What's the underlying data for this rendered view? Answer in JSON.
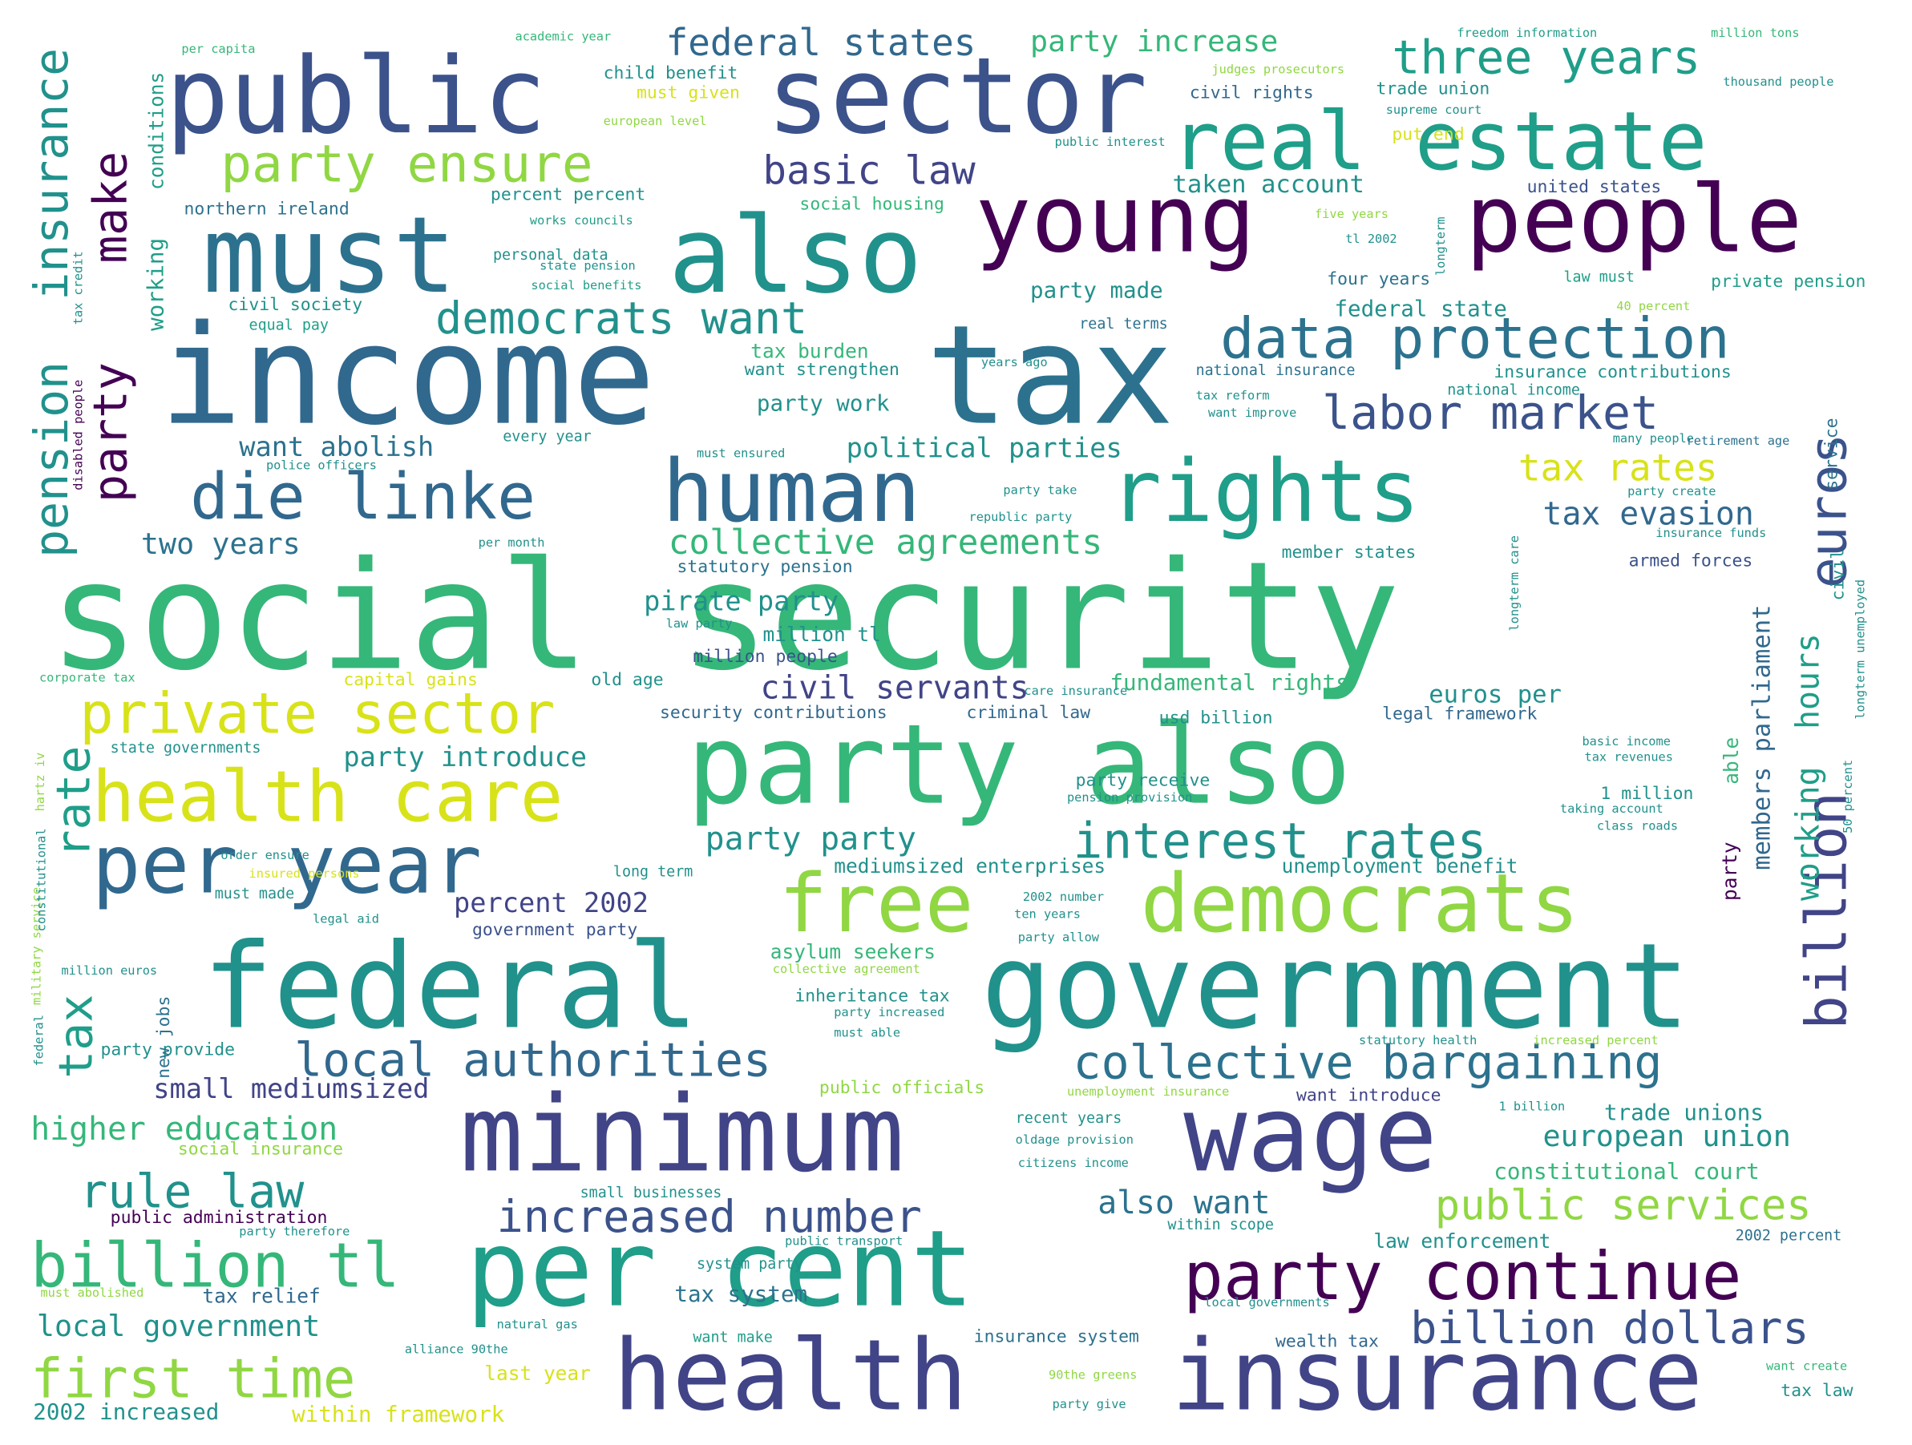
{
  "palette": {
    "dark_purple": "#440154",
    "indigo": "#3b528b",
    "navy": "#414487",
    "blue": "#31688e",
    "teal_blue": "#2c728e",
    "teal": "#21918c",
    "sea_green": "#1f9e89",
    "green": "#35b779",
    "lime": "#90d743",
    "yellow": "#d8e219"
  },
  "words": [
    {
      "text": "social security"
    },
    {
      "text": "income"
    },
    {
      "text": "tax"
    },
    {
      "text": "public"
    },
    {
      "text": "sector"
    },
    {
      "text": "federal"
    },
    {
      "text": "government"
    },
    {
      "text": "must"
    },
    {
      "text": "also"
    },
    {
      "text": "young"
    },
    {
      "text": "people"
    },
    {
      "text": "party also"
    },
    {
      "text": "minimum"
    },
    {
      "text": "wage"
    },
    {
      "text": "per cent"
    },
    {
      "text": "health"
    },
    {
      "text": "insurance"
    },
    {
      "text": "real estate"
    },
    {
      "text": "human"
    },
    {
      "text": "rights"
    },
    {
      "text": "free"
    },
    {
      "text": "democrats"
    },
    {
      "text": "per year"
    },
    {
      "text": "health care"
    },
    {
      "text": "private sector"
    },
    {
      "text": "die linke"
    },
    {
      "text": "data protection"
    },
    {
      "text": "party continue"
    },
    {
      "text": "billion tl"
    },
    {
      "text": "first time"
    },
    {
      "text": "interest rates"
    },
    {
      "text": "collective bargaining"
    },
    {
      "text": "local authorities"
    },
    {
      "text": "increased number"
    },
    {
      "text": "rule law"
    },
    {
      "text": "billion dollars"
    },
    {
      "text": "public services"
    },
    {
      "text": "labor market"
    },
    {
      "text": "party ensure"
    },
    {
      "text": "three years"
    },
    {
      "text": "democrats want"
    },
    {
      "text": "collective agreements"
    },
    {
      "text": "euros"
    },
    {
      "text": "billion"
    },
    {
      "text": "tax rates"
    },
    {
      "text": "basic law"
    },
    {
      "text": "federal states"
    },
    {
      "text": "party increase"
    },
    {
      "text": "tax evasion"
    },
    {
      "text": "civil servants"
    },
    {
      "text": "european union"
    },
    {
      "text": "also want"
    },
    {
      "text": "local government"
    },
    {
      "text": "higher education"
    },
    {
      "text": "two years"
    },
    {
      "text": "political parties"
    },
    {
      "text": "pirate party"
    },
    {
      "text": "party party"
    },
    {
      "text": "party introduce"
    },
    {
      "text": "fundamental rights"
    },
    {
      "text": "euros per"
    },
    {
      "text": "small mediumsized"
    },
    {
      "text": "percent 2002"
    },
    {
      "text": "constitutional court"
    },
    {
      "text": "trade unions"
    },
    {
      "text": "taken account"
    },
    {
      "text": "want abolish"
    },
    {
      "text": "unemployment benefit"
    },
    {
      "text": "mediumsized enterprises"
    },
    {
      "text": "asylum seekers"
    },
    {
      "text": "within framework"
    },
    {
      "text": "2002 increased"
    },
    {
      "text": "last year"
    },
    {
      "text": "tax system"
    },
    {
      "text": "tax relief"
    },
    {
      "text": "wealth tax"
    },
    {
      "text": "law enforcement"
    },
    {
      "text": "armed forces"
    },
    {
      "text": "member states"
    },
    {
      "text": "statutory pension"
    },
    {
      "text": "million people"
    },
    {
      "text": "million tl"
    },
    {
      "text": "old age"
    },
    {
      "text": "capital gains"
    },
    {
      "text": "legal framework"
    },
    {
      "text": "criminal law"
    },
    {
      "text": "usd billion"
    },
    {
      "text": "security contributions"
    },
    {
      "text": "1 million"
    },
    {
      "text": "party receive"
    },
    {
      "text": "party provide"
    },
    {
      "text": "public officials"
    },
    {
      "text": "inheritance tax"
    },
    {
      "text": "government party"
    },
    {
      "text": "recent years"
    },
    {
      "text": "want introduce"
    },
    {
      "text": "system party"
    },
    {
      "text": "want make"
    },
    {
      "text": "insurance system"
    },
    {
      "text": "small businesses"
    },
    {
      "text": "public administration"
    },
    {
      "text": "within scope"
    },
    {
      "text": "2002 percent"
    },
    {
      "text": "tax law"
    },
    {
      "text": "want create"
    },
    {
      "text": "social insurance"
    },
    {
      "text": "state governments"
    },
    {
      "text": "party work"
    },
    {
      "text": "party made"
    },
    {
      "text": "tax burden"
    },
    {
      "text": "want strengthen"
    },
    {
      "text": "real terms"
    },
    {
      "text": "national insurance"
    },
    {
      "text": "insurance contributions"
    },
    {
      "text": "national income"
    },
    {
      "text": "federal state"
    },
    {
      "text": "four years"
    },
    {
      "text": "law must"
    },
    {
      "text": "private pension"
    },
    {
      "text": "united states"
    },
    {
      "text": "civil rights"
    },
    {
      "text": "trade union"
    },
    {
      "text": "put end"
    },
    {
      "text": "child benefit"
    },
    {
      "text": "must given"
    },
    {
      "text": "northern ireland"
    },
    {
      "text": "percent percent"
    },
    {
      "text": "social housing"
    },
    {
      "text": "personal data"
    },
    {
      "text": "civil society"
    },
    {
      "text": "equal pay"
    },
    {
      "text": "every year"
    },
    {
      "text": "insurance"
    },
    {
      "text": "make"
    },
    {
      "text": "party"
    },
    {
      "text": "pension"
    },
    {
      "text": "rate"
    },
    {
      "text": "tax"
    },
    {
      "text": "working"
    },
    {
      "text": "conditions"
    },
    {
      "text": "new jobs"
    },
    {
      "text": "hours"
    },
    {
      "text": "working"
    },
    {
      "text": "members parliament"
    },
    {
      "text": "party"
    },
    {
      "text": "able"
    },
    {
      "text": "civil"
    },
    {
      "text": "service"
    },
    {
      "text": "must made"
    },
    {
      "text": "long term"
    },
    {
      "text": "per capita"
    },
    {
      "text": "academic year"
    },
    {
      "text": "freedom information"
    },
    {
      "text": "million tons"
    },
    {
      "text": "judges prosecutors"
    },
    {
      "text": "supreme court"
    },
    {
      "text": "thousand people"
    },
    {
      "text": "european level"
    },
    {
      "text": "public interest"
    },
    {
      "text": "works councils"
    },
    {
      "text": "five years"
    },
    {
      "text": "tl 2002"
    },
    {
      "text": "state pension"
    },
    {
      "text": "social benefits"
    },
    {
      "text": "40 percent"
    },
    {
      "text": "years ago"
    },
    {
      "text": "tax reform"
    },
    {
      "text": "want improve"
    },
    {
      "text": "many people"
    },
    {
      "text": "retirement age"
    },
    {
      "text": "must ensured"
    },
    {
      "text": "police officers"
    },
    {
      "text": "party take"
    },
    {
      "text": "party create"
    },
    {
      "text": "republic party"
    },
    {
      "text": "insurance funds"
    },
    {
      "text": "per month"
    },
    {
      "text": "law party"
    },
    {
      "text": "corporate tax"
    },
    {
      "text": "care insurance"
    },
    {
      "text": "basic income"
    },
    {
      "text": "tax revenues"
    },
    {
      "text": "pension provision"
    },
    {
      "text": "taking account"
    },
    {
      "text": "class roads"
    },
    {
      "text": "order ensure"
    },
    {
      "text": "insured persons"
    },
    {
      "text": "legal aid"
    },
    {
      "text": "2002 number"
    },
    {
      "text": "ten years"
    },
    {
      "text": "party allow"
    },
    {
      "text": "million euros"
    },
    {
      "text": "collective agreement"
    },
    {
      "text": "party increased"
    },
    {
      "text": "must able"
    },
    {
      "text": "statutory health"
    },
    {
      "text": "increased percent"
    },
    {
      "text": "unemployment insurance"
    },
    {
      "text": "1 billion"
    },
    {
      "text": "oldage provision"
    },
    {
      "text": "citizens income"
    },
    {
      "text": "party therefore"
    },
    {
      "text": "public transport"
    },
    {
      "text": "must abolished"
    },
    {
      "text": "local governments"
    },
    {
      "text": "natural gas"
    },
    {
      "text": "alliance 90the"
    },
    {
      "text": "90the greens"
    },
    {
      "text": "party give"
    },
    {
      "text": "hartz iv"
    },
    {
      "text": "military service"
    },
    {
      "text": "constitutional"
    },
    {
      "text": "federal"
    },
    {
      "text": "disabled people"
    },
    {
      "text": "tax credit"
    },
    {
      "text": "longterm care"
    },
    {
      "text": "longterm unemployed"
    },
    {
      "text": "50 percent"
    },
    {
      "text": "longterm"
    }
  ]
}
